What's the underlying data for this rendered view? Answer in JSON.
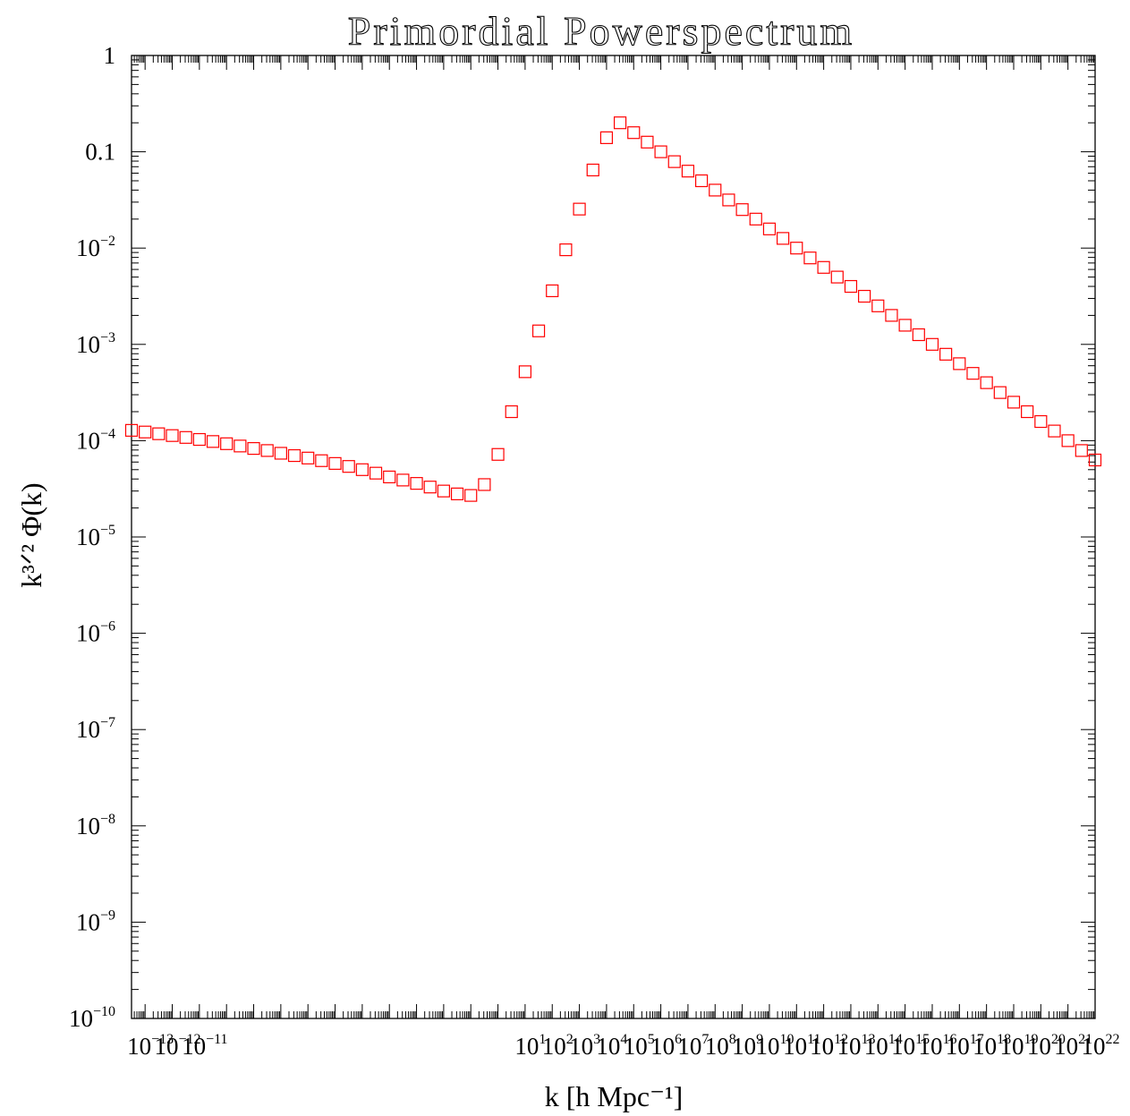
{
  "chart_data": {
    "type": "scatter",
    "title": "Primordial Powerspectrum",
    "xlabel": "k [h Mpc⁻¹]",
    "ylabel": "k³ᐟ² Φ(k)",
    "x_scale": "log",
    "y_scale": "log",
    "xlim": [
      3.16e-14,
      1e+22
    ],
    "ylim": [
      1e-10,
      1
    ],
    "grid": false,
    "marker": "open-square",
    "marker_color": "#ff0000",
    "x_ticks": [
      {
        "base": "10",
        "exp": "−13",
        "value": 1e-13
      },
      {
        "base": "10",
        "exp": "−12",
        "value": 1e-12
      },
      {
        "base": "10",
        "exp": "−11",
        "value": 1e-11
      },
      {
        "base": "10",
        "exp": "1",
        "value": 10
      },
      {
        "base": "10",
        "exp": "2",
        "value": 100
      },
      {
        "base": "10",
        "exp": "3",
        "value": 1000
      },
      {
        "base": "10",
        "exp": "4",
        "value": 10000
      },
      {
        "base": "10",
        "exp": "5",
        "value": 100000
      },
      {
        "base": "10",
        "exp": "6",
        "value": 1000000
      },
      {
        "base": "10",
        "exp": "7",
        "value": 10000000
      },
      {
        "base": "10",
        "exp": "8",
        "value": 100000000
      },
      {
        "base": "10",
        "exp": "9",
        "value": 1000000000
      },
      {
        "base": "10",
        "exp": "10",
        "value": 10000000000.0
      },
      {
        "base": "10",
        "exp": "11",
        "value": 100000000000.0
      },
      {
        "base": "10",
        "exp": "12",
        "value": 1000000000000.0
      },
      {
        "base": "10",
        "exp": "13",
        "value": 10000000000000.0
      },
      {
        "base": "10",
        "exp": "14",
        "value": 100000000000000.0
      },
      {
        "base": "10",
        "exp": "15",
        "value": 1000000000000000.0
      },
      {
        "base": "10",
        "exp": "16",
        "value": 1e+16
      },
      {
        "base": "10",
        "exp": "17",
        "value": 1e+17
      },
      {
        "base": "10",
        "exp": "18",
        "value": 1e+18
      },
      {
        "base": "10",
        "exp": "19",
        "value": 1e+19
      },
      {
        "base": "10",
        "exp": "20",
        "value": 1e+20
      },
      {
        "base": "10",
        "exp": "21",
        "value": 1e+21
      },
      {
        "base": "10",
        "exp": "22",
        "value": 1e+22
      }
    ],
    "y_ticks": [
      {
        "text": "1",
        "base": "",
        "exp": "",
        "value": 1
      },
      {
        "text": "0.1",
        "base": "",
        "exp": "",
        "value": 0.1
      },
      {
        "text": "",
        "base": "10",
        "exp": "−2",
        "value": 0.01
      },
      {
        "text": "",
        "base": "10",
        "exp": "−3",
        "value": 0.001
      },
      {
        "text": "",
        "base": "10",
        "exp": "−4",
        "value": 0.0001
      },
      {
        "text": "",
        "base": "10",
        "exp": "−5",
        "value": 1e-05
      },
      {
        "text": "",
        "base": "10",
        "exp": "−6",
        "value": 1e-06
      },
      {
        "text": "",
        "base": "10",
        "exp": "−7",
        "value": 1e-07
      },
      {
        "text": "",
        "base": "10",
        "exp": "−8",
        "value": 1e-08
      },
      {
        "text": "",
        "base": "10",
        "exp": "−9",
        "value": 1e-09
      },
      {
        "text": "",
        "base": "10",
        "exp": "−10",
        "value": 1e-10
      }
    ],
    "series": [
      {
        "x": [
          3.16e-14,
          1e-13,
          3.16e-13,
          1e-12,
          3.16e-12,
          1e-11,
          3.16e-11,
          1e-10,
          3.16e-10,
          1e-09,
          3.16e-09,
          1e-08,
          3.16e-08,
          1e-07,
          3.16e-07,
          1e-06,
          3.16e-06,
          1e-05,
          3.16e-05,
          0.0001,
          0.000316,
          0.001,
          0.00316,
          0.01,
          0.0316,
          0.1,
          0.316,
          1,
          3.16,
          10,
          31.6,
          100,
          316,
          1000,
          3160,
          10000,
          31600,
          100000,
          316000,
          1000000,
          3160000,
          10000000,
          31600000,
          100000000,
          316000000,
          1000000000,
          3160000000.0,
          10000000000.0,
          31600000000.0,
          100000000000.0,
          316000000000.0,
          1000000000000.0,
          3160000000000.0,
          10000000000000.0,
          31600000000000.0,
          100000000000000.0,
          316000000000000.0,
          1000000000000000.0,
          3160000000000000.0,
          1e+16,
          3.16e+16,
          1e+17,
          3.16e+17,
          1e+18,
          3.16e+18,
          1e+19,
          3.16e+19,
          1e+20,
          3.16e+20,
          1e+21,
          3.16e+21,
          1e+22
        ],
        "y": [
          0.000128,
          0.000123,
          0.000118,
          0.000113,
          0.000108,
          0.000103,
          9.8e-05,
          9.3e-05,
          8.8e-05,
          8.3e-05,
          7.9e-05,
          7.4e-05,
          7e-05,
          6.6e-05,
          6.2e-05,
          5.8e-05,
          5.4e-05,
          5e-05,
          4.6e-05,
          4.2e-05,
          3.9e-05,
          3.6e-05,
          3.3e-05,
          3e-05,
          2.8e-05,
          2.7e-05,
          3.5e-05,
          7.2e-05,
          0.0002,
          0.00052,
          0.00138,
          0.0036,
          0.0096,
          0.0254,
          0.0647,
          0.14,
          0.2,
          0.158,
          0.126,
          0.1,
          0.079,
          0.063,
          0.05,
          0.04,
          0.0316,
          0.0251,
          0.02,
          0.0158,
          0.0126,
          0.01,
          0.0079,
          0.0063,
          0.005,
          0.004,
          0.00316,
          0.00251,
          0.002,
          0.00158,
          0.00126,
          0.001,
          0.00079,
          0.00063,
          0.0005,
          0.0004,
          0.000316,
          0.000251,
          0.0002,
          0.000158,
          0.000126,
          0.0001,
          7.9e-05,
          6.3e-05
        ]
      }
    ]
  }
}
